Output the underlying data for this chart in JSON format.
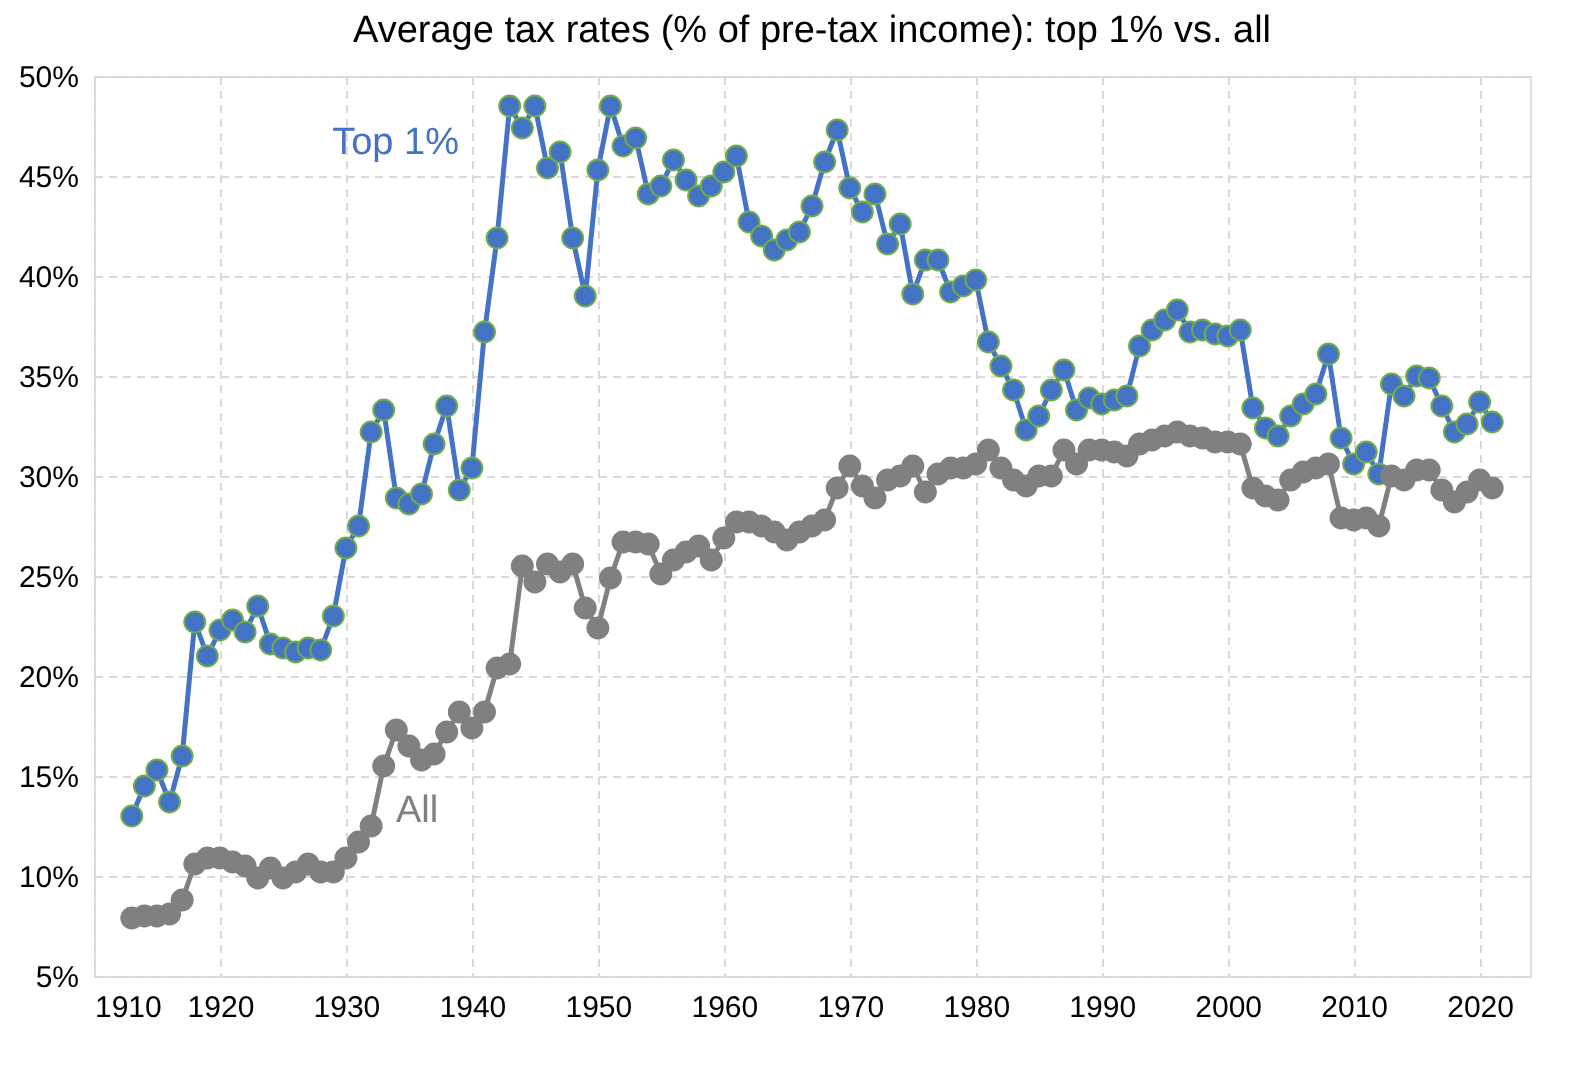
{
  "chart_data": {
    "type": "line",
    "title": "Average tax rates (% of pre-tax income): top 1% vs. all",
    "x": [
      1913,
      1914,
      1915,
      1916,
      1917,
      1918,
      1919,
      1920,
      1921,
      1922,
      1923,
      1924,
      1925,
      1926,
      1927,
      1928,
      1929,
      1930,
      1931,
      1932,
      1933,
      1934,
      1935,
      1936,
      1937,
      1938,
      1939,
      1940,
      1941,
      1942,
      1943,
      1944,
      1945,
      1946,
      1947,
      1948,
      1949,
      1950,
      1951,
      1952,
      1953,
      1954,
      1955,
      1956,
      1957,
      1958,
      1959,
      1960,
      1961,
      1962,
      1963,
      1964,
      1965,
      1966,
      1967,
      1968,
      1969,
      1970,
      1971,
      1972,
      1973,
      1974,
      1975,
      1976,
      1977,
      1978,
      1979,
      1980,
      1981,
      1982,
      1983,
      1984,
      1985,
      1986,
      1987,
      1988,
      1989,
      1990,
      1991,
      1992,
      1993,
      1994,
      1995,
      1996,
      1997,
      1998,
      1999,
      2000,
      2001,
      2002,
      2003,
      2004,
      2005,
      2006,
      2007,
      2008,
      2009,
      2010,
      2011,
      2012,
      2013,
      2014,
      2015,
      2016,
      2017,
      2018,
      2019,
      2020,
      2021
    ],
    "series": [
      {
        "name": "Top 1%",
        "color": "#4472c4",
        "values": [
          13.0,
          14.5,
          15.3,
          13.7,
          16.0,
          22.7,
          21.0,
          22.3,
          22.8,
          22.2,
          23.5,
          21.6,
          21.4,
          21.2,
          21.4,
          21.3,
          23.0,
          26.4,
          27.5,
          32.2,
          33.3,
          28.9,
          28.6,
          29.1,
          31.6,
          33.5,
          29.3,
          30.4,
          37.2,
          41.9,
          48.5,
          47.4,
          48.5,
          45.4,
          46.2,
          41.9,
          39.0,
          45.3,
          48.5,
          46.5,
          46.9,
          44.1,
          44.5,
          45.8,
          44.8,
          44.0,
          44.5,
          45.2,
          46.0,
          42.7,
          42.0,
          41.3,
          41.8,
          42.2,
          43.5,
          45.7,
          47.3,
          44.4,
          43.2,
          44.1,
          41.6,
          42.6,
          39.1,
          40.8,
          40.8,
          39.2,
          39.5,
          39.8,
          36.7,
          35.5,
          34.3,
          32.3,
          33.0,
          34.3,
          35.3,
          33.3,
          33.9,
          33.6,
          33.8,
          34.0,
          36.5,
          37.3,
          37.8,
          38.3,
          37.2,
          37.3,
          37.1,
          37.0,
          37.3,
          33.4,
          32.4,
          32.0,
          33.0,
          33.6,
          34.1,
          36.1,
          31.9,
          30.6,
          31.2,
          30.1,
          34.6,
          34.0,
          35.0,
          34.9,
          33.5,
          32.2,
          32.6,
          33.7,
          32.7
        ]
      },
      {
        "name": "All",
        "color": "#808080",
        "values": [
          7.9,
          8.0,
          8.0,
          8.1,
          8.8,
          10.6,
          10.9,
          10.9,
          10.7,
          10.5,
          9.9,
          10.4,
          9.9,
          10.2,
          10.6,
          10.2,
          10.2,
          10.9,
          11.7,
          12.5,
          15.5,
          17.3,
          16.5,
          15.8,
          16.1,
          17.2,
          18.2,
          17.4,
          18.2,
          20.4,
          20.6,
          25.5,
          24.7,
          25.6,
          25.2,
          25.6,
          23.4,
          22.4,
          24.9,
          26.7,
          26.7,
          26.6,
          25.1,
          25.8,
          26.2,
          26.5,
          25.8,
          26.9,
          27.7,
          27.7,
          27.5,
          27.2,
          26.8,
          27.2,
          27.5,
          27.8,
          29.4,
          30.5,
          29.5,
          28.9,
          29.8,
          30.0,
          30.5,
          29.2,
          30.1,
          30.4,
          30.4,
          30.6,
          31.3,
          30.4,
          29.8,
          29.5,
          30.0,
          30.0,
          31.3,
          30.6,
          31.3,
          31.3,
          31.2,
          31.0,
          31.6,
          31.8,
          32.0,
          32.2,
          32.0,
          31.9,
          31.7,
          31.7,
          31.6,
          29.4,
          29.0,
          28.8,
          29.8,
          30.2,
          30.4,
          30.6,
          27.9,
          27.8,
          27.9,
          27.5,
          30.0,
          29.8,
          30.3,
          30.3,
          29.3,
          28.7,
          29.2,
          29.8,
          29.4
        ]
      }
    ],
    "xlim": [
      1910,
      2024
    ],
    "xticks": [
      1910,
      1920,
      1930,
      1940,
      1950,
      1960,
      1970,
      1980,
      1990,
      2000,
      2010,
      2020
    ],
    "ylim": [
      5,
      50
    ],
    "yticks": [
      {
        "value": 5,
        "label": "5%"
      },
      {
        "value": 10,
        "label": "10%"
      },
      {
        "value": 15,
        "label": "15%"
      },
      {
        "value": 20,
        "label": "20%"
      },
      {
        "value": 25,
        "label": "25%"
      },
      {
        "value": 30,
        "label": "30%"
      },
      {
        "value": 35,
        "label": "35%"
      },
      {
        "value": 40,
        "label": "40%"
      },
      {
        "value": 45,
        "label": "45%"
      },
      {
        "value": 50,
        "label": "50%"
      }
    ],
    "grid": true,
    "marker": "circle",
    "line_style": "solid"
  }
}
